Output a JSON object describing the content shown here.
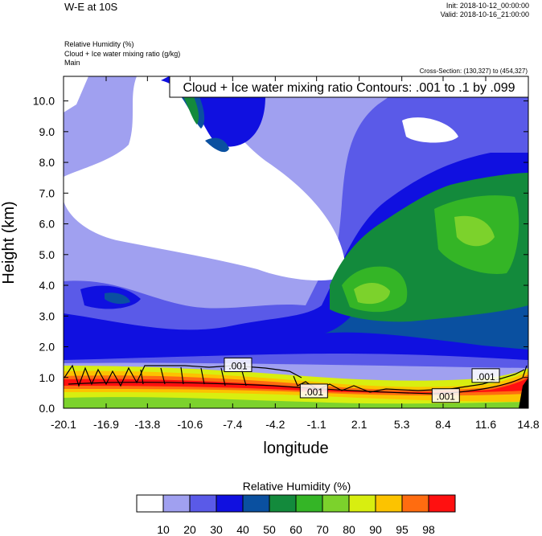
{
  "header": {
    "title": "W-E at 10S",
    "init": "Init: 2018-10-12_00:00:00",
    "valid": "Valid: 2018-10-16_21:00:00",
    "field1": "Relative Humidity   (%)",
    "field2": "Cloud + Ice water mixing ratio   (g/kg)",
    "field3": "Main",
    "cross_section": "Cross-Section: (130,327) to (454,327)",
    "contour_box": "Cloud + Ice water mixing ratio Contours: .001 to .1 by .099"
  },
  "chart_data": {
    "type": "heatmap",
    "title": "W-E at 10S",
    "xlabel": "longitude",
    "ylabel": "Height (km)",
    "xlim": [
      -20.1,
      14.8
    ],
    "ylim": [
      0.0,
      10.8
    ],
    "x_ticks": [
      "-20.1",
      "-16.9",
      "-13.8",
      "-10.6",
      "-7.4",
      "-4.2",
      "-1.1",
      "2.1",
      "5.3",
      "8.4",
      "11.6",
      "14.8"
    ],
    "y_ticks": [
      "0.0",
      "1.0",
      "2.0",
      "3.0",
      "4.0",
      "5.0",
      "6.0",
      "7.0",
      "8.0",
      "9.0",
      "10.0"
    ],
    "colorbar": {
      "label": "Relative Humidity  (%)",
      "levels": [
        "10",
        "20",
        "30",
        "40",
        "50",
        "60",
        "70",
        "80",
        "90",
        "95",
        "98"
      ],
      "colors": [
        "#ffffff",
        "#a0a0f0",
        "#5a5ae8",
        "#1010e0",
        "#0a50a0",
        "#138a3c",
        "#34b526",
        "#7cd22c",
        "#d8ee10",
        "#fcc300",
        "#ff6c10",
        "#ff1010"
      ]
    },
    "contour_labels": [
      {
        "text": ".001",
        "x": -7.0,
        "y": 1.4
      },
      {
        "text": ".001",
        "x": -1.3,
        "y": 0.55
      },
      {
        "text": ".001",
        "x": 8.6,
        "y": 0.4
      },
      {
        "text": ".001",
        "x": 11.6,
        "y": 1.05
      }
    ]
  }
}
